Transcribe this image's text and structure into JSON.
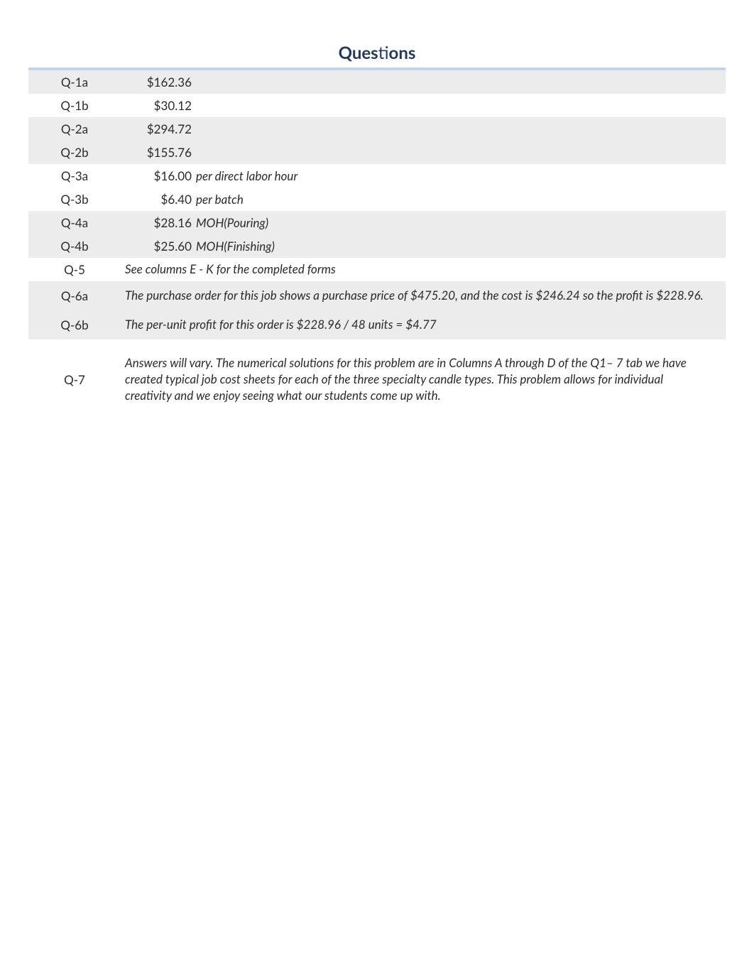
{
  "heading": {
    "part1": "Ques",
    "part2": "ti",
    "part3": "ons",
    "color": "#23395d",
    "fontsize": 24
  },
  "divider_color": "#c2d4e8",
  "shaded_bg": "#ececec",
  "text_color": "#2b2b2b",
  "font_family": "Segoe UI, Lato, Open Sans, Arial, sans-serif",
  "body_fontsize": 17,
  "rows": [
    {
      "id": "Q-1a",
      "amount": "$162.36",
      "note": "",
      "fulltext": "",
      "shaded": true
    },
    {
      "id": "Q-1b",
      "amount": "$30.12",
      "note": "",
      "fulltext": "",
      "shaded": false
    },
    {
      "id": "Q-2a",
      "amount": "$294.72",
      "note": "",
      "fulltext": "",
      "shaded": true
    },
    {
      "id": "Q-2b",
      "amount": "$155.76",
      "note": "",
      "fulltext": "",
      "shaded": true
    },
    {
      "id": "Q-3a",
      "amount": "$16.00",
      "note": "per direct labor hour",
      "fulltext": "",
      "shaded": false
    },
    {
      "id": "Q-3b",
      "amount": "$6.40",
      "note": "per batch",
      "fulltext": "",
      "shaded": false
    },
    {
      "id": "Q-4a",
      "amount": "$28.16",
      "note": "MOH(Pouring)",
      "fulltext": "",
      "shaded": true
    },
    {
      "id": "Q-4b",
      "amount": "$25.60",
      "note": "MOH(Finishing)",
      "fulltext": "",
      "shaded": true
    },
    {
      "id": "Q-5",
      "amount": "",
      "note": "",
      "fulltext": "See columns E - K for the completed forms",
      "shaded": false
    },
    {
      "id": "Q-6a",
      "amount": "",
      "note": "",
      "fulltext": "The purchase order for this job shows a purchase price of $475.20, and the cost is $246.24 so the profit is $228.96.",
      "shaded": true
    },
    {
      "id": "Q-6b",
      "amount": "",
      "note": "",
      "fulltext": "The per-unit profit for this order is $228.96 / 48 units = $4.77",
      "shaded": true
    }
  ],
  "finalRow": {
    "id": "Q-7",
    "text": "Answers will vary. The numerical solutions for this problem are in Columns A through D of the Q1– 7 tab we have created typical job cost sheets for each of the three specialty candle types. This problem allows for individual creativity and we enjoy seeing what our students come up with."
  }
}
